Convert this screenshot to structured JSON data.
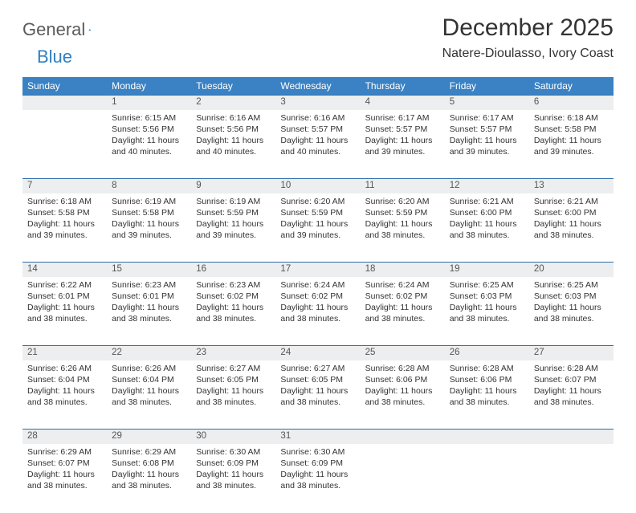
{
  "brand": {
    "name_a": "General",
    "name_b": "Blue"
  },
  "title": "December 2025",
  "location": "Natere-Dioulasso, Ivory Coast",
  "colors": {
    "header_bg": "#3a82c4",
    "header_text": "#ffffff",
    "daynum_bg": "#eceeef",
    "row_border": "#2f6fa8",
    "body_text": "#333333",
    "brand_gray": "#5a5a5a",
    "brand_blue": "#2f7fc2",
    "page_bg": "#ffffff"
  },
  "weekdays": [
    "Sunday",
    "Monday",
    "Tuesday",
    "Wednesday",
    "Thursday",
    "Friday",
    "Saturday"
  ],
  "weeks": [
    {
      "nums": [
        "",
        "1",
        "2",
        "3",
        "4",
        "5",
        "6"
      ],
      "cells": [
        null,
        {
          "sunrise": "Sunrise: 6:15 AM",
          "sunset": "Sunset: 5:56 PM",
          "day1": "Daylight: 11 hours",
          "day2": "and 40 minutes."
        },
        {
          "sunrise": "Sunrise: 6:16 AM",
          "sunset": "Sunset: 5:56 PM",
          "day1": "Daylight: 11 hours",
          "day2": "and 40 minutes."
        },
        {
          "sunrise": "Sunrise: 6:16 AM",
          "sunset": "Sunset: 5:57 PM",
          "day1": "Daylight: 11 hours",
          "day2": "and 40 minutes."
        },
        {
          "sunrise": "Sunrise: 6:17 AM",
          "sunset": "Sunset: 5:57 PM",
          "day1": "Daylight: 11 hours",
          "day2": "and 39 minutes."
        },
        {
          "sunrise": "Sunrise: 6:17 AM",
          "sunset": "Sunset: 5:57 PM",
          "day1": "Daylight: 11 hours",
          "day2": "and 39 minutes."
        },
        {
          "sunrise": "Sunrise: 6:18 AM",
          "sunset": "Sunset: 5:58 PM",
          "day1": "Daylight: 11 hours",
          "day2": "and 39 minutes."
        }
      ]
    },
    {
      "nums": [
        "7",
        "8",
        "9",
        "10",
        "11",
        "12",
        "13"
      ],
      "cells": [
        {
          "sunrise": "Sunrise: 6:18 AM",
          "sunset": "Sunset: 5:58 PM",
          "day1": "Daylight: 11 hours",
          "day2": "and 39 minutes."
        },
        {
          "sunrise": "Sunrise: 6:19 AM",
          "sunset": "Sunset: 5:58 PM",
          "day1": "Daylight: 11 hours",
          "day2": "and 39 minutes."
        },
        {
          "sunrise": "Sunrise: 6:19 AM",
          "sunset": "Sunset: 5:59 PM",
          "day1": "Daylight: 11 hours",
          "day2": "and 39 minutes."
        },
        {
          "sunrise": "Sunrise: 6:20 AM",
          "sunset": "Sunset: 5:59 PM",
          "day1": "Daylight: 11 hours",
          "day2": "and 39 minutes."
        },
        {
          "sunrise": "Sunrise: 6:20 AM",
          "sunset": "Sunset: 5:59 PM",
          "day1": "Daylight: 11 hours",
          "day2": "and 38 minutes."
        },
        {
          "sunrise": "Sunrise: 6:21 AM",
          "sunset": "Sunset: 6:00 PM",
          "day1": "Daylight: 11 hours",
          "day2": "and 38 minutes."
        },
        {
          "sunrise": "Sunrise: 6:21 AM",
          "sunset": "Sunset: 6:00 PM",
          "day1": "Daylight: 11 hours",
          "day2": "and 38 minutes."
        }
      ]
    },
    {
      "nums": [
        "14",
        "15",
        "16",
        "17",
        "18",
        "19",
        "20"
      ],
      "cells": [
        {
          "sunrise": "Sunrise: 6:22 AM",
          "sunset": "Sunset: 6:01 PM",
          "day1": "Daylight: 11 hours",
          "day2": "and 38 minutes."
        },
        {
          "sunrise": "Sunrise: 6:23 AM",
          "sunset": "Sunset: 6:01 PM",
          "day1": "Daylight: 11 hours",
          "day2": "and 38 minutes."
        },
        {
          "sunrise": "Sunrise: 6:23 AM",
          "sunset": "Sunset: 6:02 PM",
          "day1": "Daylight: 11 hours",
          "day2": "and 38 minutes."
        },
        {
          "sunrise": "Sunrise: 6:24 AM",
          "sunset": "Sunset: 6:02 PM",
          "day1": "Daylight: 11 hours",
          "day2": "and 38 minutes."
        },
        {
          "sunrise": "Sunrise: 6:24 AM",
          "sunset": "Sunset: 6:02 PM",
          "day1": "Daylight: 11 hours",
          "day2": "and 38 minutes."
        },
        {
          "sunrise": "Sunrise: 6:25 AM",
          "sunset": "Sunset: 6:03 PM",
          "day1": "Daylight: 11 hours",
          "day2": "and 38 minutes."
        },
        {
          "sunrise": "Sunrise: 6:25 AM",
          "sunset": "Sunset: 6:03 PM",
          "day1": "Daylight: 11 hours",
          "day2": "and 38 minutes."
        }
      ]
    },
    {
      "nums": [
        "21",
        "22",
        "23",
        "24",
        "25",
        "26",
        "27"
      ],
      "cells": [
        {
          "sunrise": "Sunrise: 6:26 AM",
          "sunset": "Sunset: 6:04 PM",
          "day1": "Daylight: 11 hours",
          "day2": "and 38 minutes."
        },
        {
          "sunrise": "Sunrise: 6:26 AM",
          "sunset": "Sunset: 6:04 PM",
          "day1": "Daylight: 11 hours",
          "day2": "and 38 minutes."
        },
        {
          "sunrise": "Sunrise: 6:27 AM",
          "sunset": "Sunset: 6:05 PM",
          "day1": "Daylight: 11 hours",
          "day2": "and 38 minutes."
        },
        {
          "sunrise": "Sunrise: 6:27 AM",
          "sunset": "Sunset: 6:05 PM",
          "day1": "Daylight: 11 hours",
          "day2": "and 38 minutes."
        },
        {
          "sunrise": "Sunrise: 6:28 AM",
          "sunset": "Sunset: 6:06 PM",
          "day1": "Daylight: 11 hours",
          "day2": "and 38 minutes."
        },
        {
          "sunrise": "Sunrise: 6:28 AM",
          "sunset": "Sunset: 6:06 PM",
          "day1": "Daylight: 11 hours",
          "day2": "and 38 minutes."
        },
        {
          "sunrise": "Sunrise: 6:28 AM",
          "sunset": "Sunset: 6:07 PM",
          "day1": "Daylight: 11 hours",
          "day2": "and 38 minutes."
        }
      ]
    },
    {
      "nums": [
        "28",
        "29",
        "30",
        "31",
        "",
        "",
        ""
      ],
      "cells": [
        {
          "sunrise": "Sunrise: 6:29 AM",
          "sunset": "Sunset: 6:07 PM",
          "day1": "Daylight: 11 hours",
          "day2": "and 38 minutes."
        },
        {
          "sunrise": "Sunrise: 6:29 AM",
          "sunset": "Sunset: 6:08 PM",
          "day1": "Daylight: 11 hours",
          "day2": "and 38 minutes."
        },
        {
          "sunrise": "Sunrise: 6:30 AM",
          "sunset": "Sunset: 6:09 PM",
          "day1": "Daylight: 11 hours",
          "day2": "and 38 minutes."
        },
        {
          "sunrise": "Sunrise: 6:30 AM",
          "sunset": "Sunset: 6:09 PM",
          "day1": "Daylight: 11 hours",
          "day2": "and 38 minutes."
        },
        null,
        null,
        null
      ]
    }
  ]
}
